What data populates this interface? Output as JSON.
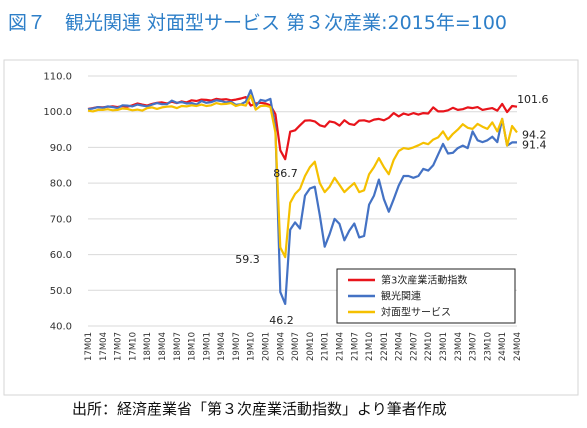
{
  "figure": {
    "title": "図７　観光関連 対面型サービス 第３次産業:2015年=100",
    "source": "出所：経済産業省「第３次産業活動指数」より筆者作成"
  },
  "chart_data": {
    "type": "line",
    "ylim": [
      40,
      110
    ],
    "yticks": [
      "40.0",
      "50.0",
      "60.0",
      "70.0",
      "80.0",
      "90.0",
      "100.0",
      "110.0"
    ],
    "grid": true,
    "legend_position": "bottom-right",
    "x": [
      "17M01",
      "17M02",
      "17M03",
      "17M04",
      "17M05",
      "17M06",
      "17M07",
      "17M08",
      "17M09",
      "17M10",
      "17M11",
      "17M12",
      "18M01",
      "18M02",
      "18M03",
      "18M04",
      "18M05",
      "18M06",
      "18M07",
      "18M08",
      "18M09",
      "18M10",
      "18M11",
      "18M12",
      "19M01",
      "19M02",
      "19M03",
      "19M04",
      "19M05",
      "19M06",
      "19M07",
      "19M08",
      "19M09",
      "19M10",
      "19M11",
      "19M12",
      "20M01",
      "20M02",
      "20M03",
      "20M04",
      "20M05",
      "20M06",
      "20M07",
      "20M08",
      "20M09",
      "20M10",
      "20M11",
      "20M12",
      "21M01",
      "21M02",
      "21M03",
      "21M04",
      "21M05",
      "21M06",
      "21M07",
      "21M08",
      "21M09",
      "21M10",
      "21M11",
      "21M12",
      "22M01",
      "22M02",
      "22M03",
      "22M04",
      "22M05",
      "22M06",
      "22M07",
      "22M08",
      "22M09",
      "22M10",
      "22M11",
      "22M12",
      "23M01",
      "23M02",
      "23M03",
      "23M04",
      "23M05",
      "23M06",
      "23M07",
      "23M08",
      "23M09",
      "23M10",
      "23M11",
      "23M12",
      "24M01",
      "24M02",
      "24M03",
      "24M04"
    ],
    "x_tick_labels": [
      "17M01",
      "17M04",
      "17M07",
      "17M10",
      "18M01",
      "18M04",
      "18M07",
      "18M10",
      "19M01",
      "19M04",
      "19M07",
      "19M10",
      "20M01",
      "20M04",
      "20M07",
      "20M10",
      "21M01",
      "21M04",
      "21M07",
      "21M10",
      "22M01",
      "22M04",
      "22M07",
      "22M10",
      "23M01",
      "23M04",
      "23M07",
      "23M10",
      "24M01",
      "24M04"
    ],
    "series": [
      {
        "name": "第3次産業活動指数",
        "color": "#e8141b",
        "values": [
          100.8,
          101.0,
          101.3,
          101.2,
          101.4,
          101.5,
          101.3,
          101.6,
          101.4,
          101.8,
          102.3,
          102.0,
          101.7,
          102.2,
          102.5,
          102.6,
          102.3,
          102.8,
          102.4,
          102.9,
          102.6,
          103.2,
          103.0,
          103.4,
          103.3,
          103.1,
          103.6,
          103.4,
          103.5,
          103.2,
          103.4,
          103.7,
          104.1,
          101.7,
          102.3,
          102.5,
          102.3,
          101.8,
          99.3,
          89.2,
          86.7,
          94.4,
          94.8,
          96.2,
          97.5,
          97.6,
          97.3,
          96.2,
          95.8,
          97.3,
          97.0,
          96.1,
          97.6,
          96.6,
          96.3,
          97.5,
          97.6,
          97.2,
          97.8,
          98.0,
          97.6,
          98.3,
          99.6,
          98.7,
          99.5,
          99.1,
          99.6,
          99.2,
          99.6,
          99.5,
          101.2,
          100.1,
          100.1,
          100.4,
          101.1,
          100.5,
          100.7,
          101.2,
          101.0,
          101.3,
          100.5,
          100.8,
          101.0,
          100.3,
          102.2,
          99.9,
          101.6,
          101.4
        ]
      },
      {
        "name": "観光関連",
        "color": "#4472c4",
        "values": [
          100.7,
          100.9,
          101.3,
          101.1,
          101.5,
          101.3,
          101.0,
          101.8,
          101.7,
          101.5,
          102.0,
          101.7,
          101.5,
          102.0,
          102.4,
          102.1,
          102.1,
          103.1,
          102.5,
          102.7,
          102.3,
          102.4,
          102.0,
          103.0,
          102.5,
          102.7,
          103.2,
          103.0,
          102.6,
          102.8,
          101.9,
          102.1,
          102.8,
          106.0,
          101.5,
          103.3,
          103.0,
          103.6,
          95.5,
          49.5,
          46.2,
          67.0,
          69.0,
          67.3,
          76.5,
          78.5,
          79.0,
          71.0,
          62.2,
          65.7,
          70.0,
          68.6,
          64.0,
          66.7,
          68.7,
          64.8,
          65.2,
          74.0,
          76.5,
          81.0,
          75.5,
          72.0,
          75.5,
          79.3,
          82.0,
          82.0,
          81.5,
          82.0,
          84.0,
          83.5,
          85.0,
          88.0,
          91.0,
          88.3,
          88.5,
          89.8,
          90.5,
          89.8,
          94.5,
          92.0,
          91.5,
          92.0,
          93.0,
          91.5,
          98.0,
          90.5,
          91.4,
          91.4
        ]
      },
      {
        "name": "対面型サービス",
        "color": "#f5c000",
        "values": [
          100.3,
          100.1,
          100.5,
          100.5,
          100.7,
          100.4,
          100.5,
          100.9,
          100.8,
          100.4,
          100.6,
          100.3,
          101.0,
          101.2,
          100.8,
          101.2,
          101.4,
          101.5,
          101.0,
          101.6,
          101.5,
          101.8,
          101.6,
          102.0,
          101.6,
          101.8,
          102.4,
          102.1,
          102.2,
          102.4,
          101.6,
          102.0,
          101.7,
          104.5,
          100.6,
          101.6,
          101.7,
          101.3,
          94.2,
          62.0,
          59.3,
          74.5,
          77.0,
          78.4,
          82.0,
          84.5,
          86.0,
          80.0,
          77.5,
          79.0,
          81.5,
          79.5,
          77.5,
          78.8,
          80.0,
          77.5,
          78.0,
          82.5,
          84.5,
          87.0,
          84.5,
          82.5,
          86.5,
          89.0,
          89.8,
          89.6,
          90.0,
          90.6,
          91.3,
          90.9,
          92.2,
          92.8,
          94.5,
          92.2,
          93.8,
          95.0,
          96.5,
          95.5,
          95.2,
          96.6,
          95.8,
          95.2,
          97.0,
          94.5,
          98.0,
          90.5,
          96.0,
          94.2
        ]
      }
    ],
    "annotations": [
      {
        "text": "101.6",
        "series": 0,
        "index": 86
      },
      {
        "text": "94.2",
        "series": 2,
        "index": 87
      },
      {
        "text": "91.4",
        "series": 1,
        "index": 87
      },
      {
        "text": "86.7",
        "series": 0,
        "index": 40
      },
      {
        "text": "59.3",
        "series": 2,
        "index": 40
      },
      {
        "text": "46.2",
        "series": 1,
        "index": 40
      }
    ]
  }
}
